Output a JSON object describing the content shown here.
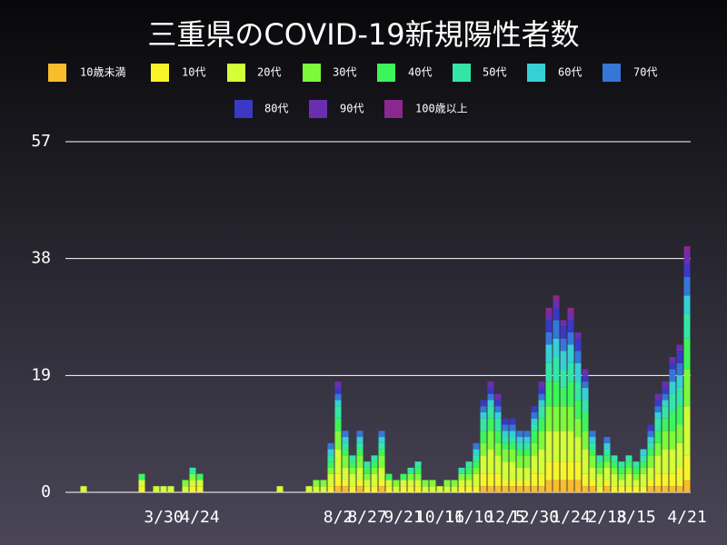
{
  "chart_data": {
    "type": "stacked_bar",
    "title": "三重県のCOVID-19新規陽性者数",
    "categories": [
      null,
      null,
      null,
      null,
      null,
      null,
      null,
      null,
      null,
      null,
      null,
      null,
      null,
      "3/30",
      null,
      null,
      null,
      null,
      "4/24",
      null,
      null,
      null,
      null,
      null,
      null,
      null,
      null,
      null,
      null,
      null,
      null,
      null,
      null,
      null,
      null,
      null,
      null,
      "8/2",
      null,
      null,
      null,
      "8/27",
      null,
      null,
      null,
      null,
      "9/21",
      null,
      null,
      null,
      null,
      "10/16",
      null,
      null,
      null,
      "11/10",
      null,
      null,
      null,
      null,
      "12/5",
      null,
      null,
      null,
      "12/30",
      null,
      null,
      null,
      null,
      "1/24",
      null,
      null,
      null,
      null,
      "2/18",
      null,
      null,
      null,
      "3/15",
      null,
      null,
      null,
      null,
      null,
      null,
      "4/21"
    ],
    "series": [
      {
        "name": "10歳未満",
        "color": "#f9bc2c",
        "values": [
          0,
          0,
          0,
          0,
          0,
          0,
          0,
          0,
          0,
          0,
          0,
          0,
          0,
          0,
          0,
          0,
          0,
          0,
          0,
          0,
          0,
          0,
          0,
          0,
          0,
          0,
          0,
          0,
          0,
          0,
          0,
          0,
          0,
          0,
          0,
          0,
          0,
          1,
          1,
          0,
          1,
          0,
          0,
          1,
          0,
          0,
          0,
          0,
          0,
          0,
          0,
          0,
          0,
          0,
          0,
          0,
          0,
          1,
          1,
          1,
          1,
          1,
          1,
          1,
          1,
          1,
          2,
          2,
          2,
          2,
          2,
          1,
          1,
          0,
          1,
          0,
          0,
          0,
          0,
          0,
          1,
          1,
          1,
          1,
          1,
          2
        ]
      },
      {
        "name": "10代",
        "color": "#f7f52a",
        "values": [
          0,
          0,
          0,
          0,
          0,
          0,
          0,
          0,
          0,
          0,
          1,
          0,
          0,
          0,
          0,
          0,
          0,
          1,
          1,
          0,
          0,
          0,
          0,
          0,
          0,
          0,
          0,
          0,
          0,
          0,
          0,
          0,
          0,
          0,
          0,
          0,
          1,
          2,
          1,
          1,
          1,
          1,
          1,
          1,
          1,
          0,
          1,
          1,
          1,
          0,
          0,
          0,
          0,
          0,
          1,
          1,
          1,
          2,
          2,
          2,
          1,
          1,
          1,
          1,
          2,
          2,
          3,
          3,
          3,
          3,
          3,
          2,
          1,
          1,
          1,
          1,
          1,
          1,
          1,
          1,
          1,
          2,
          2,
          2,
          3,
          4
        ]
      },
      {
        "name": "20代",
        "color": "#d2ff37",
        "values": [
          0,
          0,
          1,
          0,
          0,
          0,
          0,
          0,
          0,
          0,
          1,
          0,
          1,
          1,
          1,
          0,
          1,
          1,
          1,
          0,
          0,
          0,
          0,
          0,
          0,
          0,
          0,
          0,
          0,
          1,
          0,
          0,
          0,
          1,
          1,
          1,
          2,
          4,
          2,
          2,
          2,
          1,
          2,
          2,
          1,
          1,
          1,
          1,
          1,
          1,
          1,
          1,
          1,
          1,
          1,
          1,
          2,
          3,
          4,
          3,
          3,
          3,
          2,
          2,
          3,
          4,
          5,
          5,
          5,
          5,
          4,
          4,
          2,
          2,
          2,
          2,
          1,
          2,
          1,
          2,
          2,
          3,
          4,
          4,
          4,
          8
        ]
      },
      {
        "name": "30代",
        "color": "#7dfb3a",
        "values": [
          0,
          0,
          0,
          0,
          0,
          0,
          0,
          0,
          0,
          0,
          0,
          0,
          0,
          0,
          0,
          0,
          1,
          1,
          0,
          0,
          0,
          0,
          0,
          0,
          0,
          0,
          0,
          0,
          0,
          0,
          0,
          0,
          0,
          0,
          1,
          1,
          1,
          3,
          2,
          1,
          2,
          1,
          1,
          2,
          0,
          1,
          0,
          1,
          1,
          1,
          1,
          0,
          1,
          1,
          1,
          1,
          1,
          2,
          3,
          2,
          2,
          2,
          2,
          2,
          2,
          3,
          4,
          4,
          4,
          4,
          3,
          3,
          2,
          1,
          1,
          1,
          1,
          1,
          1,
          1,
          2,
          2,
          3,
          3,
          3,
          6
        ]
      },
      {
        "name": "40代",
        "color": "#3cf55a",
        "values": [
          0,
          0,
          0,
          0,
          0,
          0,
          0,
          0,
          0,
          0,
          1,
          0,
          0,
          0,
          0,
          0,
          0,
          0,
          1,
          0,
          0,
          0,
          0,
          0,
          0,
          0,
          0,
          0,
          0,
          0,
          0,
          0,
          0,
          0,
          0,
          0,
          1,
          2,
          1,
          1,
          1,
          1,
          1,
          1,
          1,
          0,
          1,
          0,
          1,
          0,
          0,
          0,
          0,
          0,
          0,
          1,
          1,
          2,
          2,
          2,
          1,
          1,
          1,
          1,
          2,
          2,
          4,
          4,
          3,
          4,
          3,
          3,
          1,
          1,
          1,
          1,
          1,
          1,
          1,
          1,
          1,
          2,
          2,
          3,
          3,
          5
        ]
      },
      {
        "name": "50代",
        "color": "#34e6a6",
        "values": [
          0,
          0,
          0,
          0,
          0,
          0,
          0,
          0,
          0,
          0,
          0,
          0,
          0,
          0,
          0,
          0,
          0,
          1,
          0,
          0,
          0,
          0,
          0,
          0,
          0,
          0,
          0,
          0,
          0,
          0,
          0,
          0,
          0,
          0,
          0,
          0,
          1,
          2,
          1,
          1,
          1,
          1,
          1,
          1,
          0,
          0,
          0,
          1,
          1,
          0,
          0,
          0,
          0,
          0,
          1,
          1,
          1,
          2,
          2,
          2,
          1,
          1,
          1,
          1,
          1,
          2,
          3,
          4,
          3,
          3,
          3,
          2,
          1,
          1,
          1,
          1,
          1,
          1,
          1,
          1,
          1,
          2,
          2,
          3,
          3,
          4
        ]
      },
      {
        "name": "60代",
        "color": "#36cfd6",
        "values": [
          0,
          0,
          0,
          0,
          0,
          0,
          0,
          0,
          0,
          0,
          0,
          0,
          0,
          0,
          0,
          0,
          0,
          0,
          0,
          0,
          0,
          0,
          0,
          0,
          0,
          0,
          0,
          0,
          0,
          0,
          0,
          0,
          0,
          0,
          0,
          0,
          1,
          1,
          1,
          0,
          1,
          0,
          0,
          1,
          0,
          0,
          0,
          0,
          0,
          0,
          0,
          0,
          0,
          0,
          0,
          0,
          1,
          1,
          1,
          1,
          1,
          1,
          1,
          1,
          1,
          1,
          3,
          3,
          3,
          3,
          3,
          2,
          1,
          0,
          1,
          0,
          0,
          0,
          0,
          1,
          1,
          1,
          1,
          2,
          2,
          3
        ]
      },
      {
        "name": "70代",
        "color": "#3577d6",
        "values": [
          0,
          0,
          0,
          0,
          0,
          0,
          0,
          0,
          0,
          0,
          0,
          0,
          0,
          0,
          0,
          0,
          0,
          0,
          0,
          0,
          0,
          0,
          0,
          0,
          0,
          0,
          0,
          0,
          0,
          0,
          0,
          0,
          0,
          0,
          0,
          0,
          1,
          1,
          1,
          0,
          1,
          0,
          0,
          1,
          0,
          0,
          0,
          0,
          0,
          0,
          0,
          0,
          0,
          0,
          0,
          0,
          1,
          1,
          1,
          1,
          1,
          1,
          1,
          1,
          1,
          1,
          2,
          3,
          2,
          2,
          2,
          1,
          1,
          0,
          1,
          0,
          0,
          0,
          0,
          0,
          1,
          1,
          1,
          2,
          2,
          3
        ]
      },
      {
        "name": "80代",
        "color": "#3a38c4",
        "values": [
          0,
          0,
          0,
          0,
          0,
          0,
          0,
          0,
          0,
          0,
          0,
          0,
          0,
          0,
          0,
          0,
          0,
          0,
          0,
          0,
          0,
          0,
          0,
          0,
          0,
          0,
          0,
          0,
          0,
          0,
          0,
          0,
          0,
          0,
          0,
          0,
          0,
          1,
          0,
          0,
          0,
          0,
          0,
          0,
          0,
          0,
          0,
          0,
          0,
          0,
          0,
          0,
          0,
          0,
          0,
          0,
          0,
          1,
          1,
          1,
          1,
          1,
          0,
          0,
          1,
          1,
          2,
          2,
          2,
          2,
          2,
          1,
          0,
          0,
          0,
          0,
          0,
          0,
          0,
          0,
          1,
          1,
          1,
          1,
          2,
          2
        ]
      },
      {
        "name": "90代",
        "color": "#6a2fb0",
        "values": [
          0,
          0,
          0,
          0,
          0,
          0,
          0,
          0,
          0,
          0,
          0,
          0,
          0,
          0,
          0,
          0,
          0,
          0,
          0,
          0,
          0,
          0,
          0,
          0,
          0,
          0,
          0,
          0,
          0,
          0,
          0,
          0,
          0,
          0,
          0,
          0,
          0,
          1,
          0,
          0,
          0,
          0,
          0,
          0,
          0,
          0,
          0,
          0,
          0,
          0,
          0,
          0,
          0,
          0,
          0,
          0,
          0,
          0,
          1,
          1,
          0,
          0,
          0,
          0,
          0,
          1,
          1,
          1,
          1,
          1,
          1,
          1,
          0,
          0,
          0,
          0,
          0,
          0,
          0,
          0,
          0,
          1,
          1,
          1,
          1,
          2
        ]
      },
      {
        "name": "100歳以上",
        "color": "#8a2890",
        "values": [
          0,
          0,
          0,
          0,
          0,
          0,
          0,
          0,
          0,
          0,
          0,
          0,
          0,
          0,
          0,
          0,
          0,
          0,
          0,
          0,
          0,
          0,
          0,
          0,
          0,
          0,
          0,
          0,
          0,
          0,
          0,
          0,
          0,
          0,
          0,
          0,
          0,
          0,
          0,
          0,
          0,
          0,
          0,
          0,
          0,
          0,
          0,
          0,
          0,
          0,
          0,
          0,
          0,
          0,
          0,
          0,
          0,
          0,
          0,
          0,
          0,
          0,
          0,
          0,
          0,
          0,
          1,
          1,
          0,
          1,
          0,
          0,
          0,
          0,
          0,
          0,
          0,
          0,
          0,
          0,
          0,
          0,
          0,
          0,
          0,
          1
        ]
      }
    ],
    "ylim": [
      0,
      57
    ],
    "yticks": [
      0,
      19,
      38,
      57
    ],
    "grid": true
  }
}
